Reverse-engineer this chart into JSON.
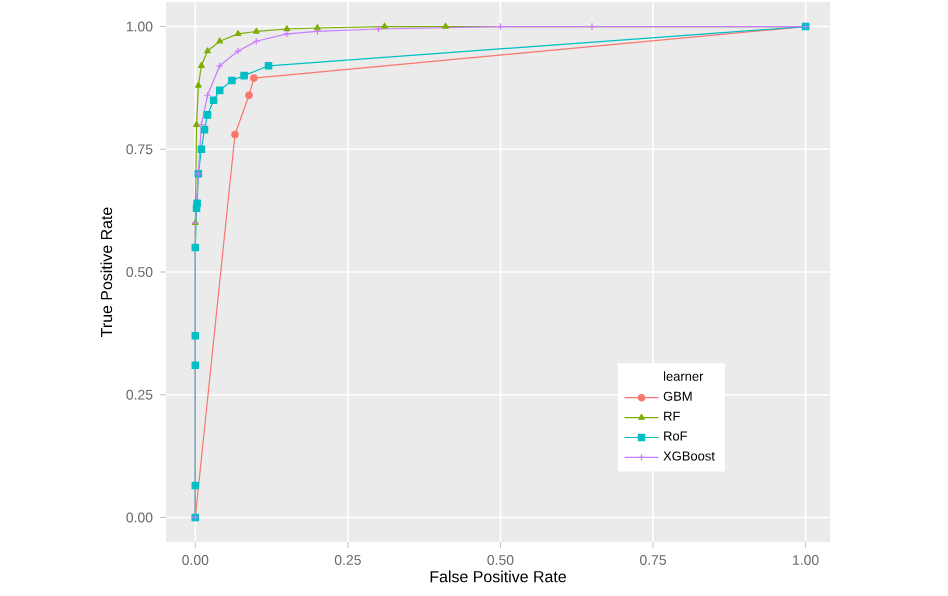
{
  "chart_data": {
    "type": "line",
    "xlabel": "False Positive Rate",
    "ylabel": "True Positive Rate",
    "legend_title": "learner",
    "legend": "bottom right",
    "grid": true,
    "xlim": [
      -0.048,
      1.04
    ],
    "ylim": [
      -0.05,
      1.05
    ],
    "xticks": [
      {
        "value": 0,
        "label": "0.00"
      },
      {
        "value": 0.25,
        "label": "0.25"
      },
      {
        "value": 0.5,
        "label": "0.50"
      },
      {
        "value": 0.75,
        "label": "0.75"
      },
      {
        "value": 1,
        "label": "1.00"
      }
    ],
    "yticks": [
      {
        "value": 0,
        "label": "0.00"
      },
      {
        "value": 0.25,
        "label": "0.25"
      },
      {
        "value": 0.5,
        "label": "0.50"
      },
      {
        "value": 0.75,
        "label": "0.75"
      },
      {
        "value": 1,
        "label": "1.00"
      }
    ],
    "series": [
      {
        "name": "GBM",
        "color": "#f8766d",
        "marker": "circle",
        "x": [
          0,
          0.065,
          0.088,
          0.096,
          1
        ],
        "values": [
          0,
          0.78,
          0.86,
          0.895,
          1
        ]
      },
      {
        "name": "RF",
        "color": "#7cae00",
        "marker": "triangle",
        "x": [
          0,
          0,
          0.002,
          0.005,
          0.01,
          0.02,
          0.04,
          0.07,
          0.1,
          0.15,
          0.2,
          0.31,
          0.41,
          1
        ],
        "values": [
          0,
          0.6,
          0.8,
          0.88,
          0.92,
          0.95,
          0.97,
          0.985,
          0.99,
          0.995,
          0.997,
          1,
          1,
          1
        ]
      },
      {
        "name": "RoF",
        "color": "#00bfc4",
        "marker": "square",
        "x": [
          0,
          0,
          0,
          0,
          0,
          0.002,
          0.003,
          0.005,
          0.01,
          0.015,
          0.02,
          0.03,
          0.04,
          0.06,
          0.08,
          0.12,
          1
        ],
        "values": [
          0,
          0.065,
          0.31,
          0.37,
          0.55,
          0.63,
          0.64,
          0.7,
          0.75,
          0.79,
          0.82,
          0.85,
          0.87,
          0.89,
          0.9,
          0.92,
          1
        ]
      },
      {
        "name": "XGBoost",
        "color": "#c77cff",
        "marker": "cross",
        "x": [
          0,
          0,
          0.005,
          0.01,
          0.02,
          0.04,
          0.07,
          0.1,
          0.15,
          0.2,
          0.3,
          0.5,
          0.65,
          1
        ],
        "values": [
          0,
          0.6,
          0.7,
          0.8,
          0.86,
          0.92,
          0.95,
          0.97,
          0.985,
          0.99,
          0.995,
          1,
          1,
          1
        ]
      }
    ]
  }
}
